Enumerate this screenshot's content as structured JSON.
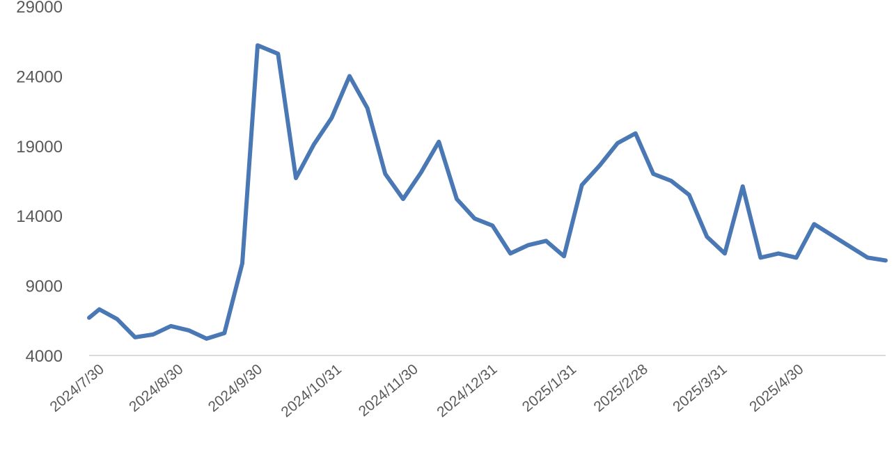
{
  "chart_data": {
    "type": "line",
    "title": "",
    "xlabel": "",
    "ylabel": "",
    "ylim": [
      4000,
      29000
    ],
    "y_ticks": [
      4000,
      9000,
      14000,
      19000,
      24000,
      29000
    ],
    "y_tick_labels": [
      "4000",
      "9000",
      "14000",
      "19000",
      "24000",
      "29000"
    ],
    "x_tick_labels": [
      "2024/7/30",
      "2024/8/30",
      "2024/9/30",
      "2024/10/31",
      "2024/11/30",
      "2024/12/31",
      "2025/1/31",
      "2025/2/28",
      "2025/3/31",
      "2025/4/30"
    ],
    "grid": false,
    "legend": "none",
    "series": [
      {
        "color": "#4a78b5",
        "x": [
          "2024/7/26",
          "2024/7/30",
          "2024/8/6",
          "2024/8/13",
          "2024/8/20",
          "2024/8/27",
          "2024/9/3",
          "2024/9/10",
          "2024/9/17",
          "2024/9/24",
          "2024/9/30",
          "2024/10/8",
          "2024/10/15",
          "2024/10/22",
          "2024/10/29",
          "2024/11/5",
          "2024/11/12",
          "2024/11/19",
          "2024/11/26",
          "2024/12/3",
          "2024/12/10",
          "2024/12/17",
          "2024/12/24",
          "2024/12/31",
          "2025/1/7",
          "2025/1/14",
          "2025/1/21",
          "2025/1/28",
          "2025/2/4",
          "2025/2/11",
          "2025/2/18",
          "2025/2/25",
          "2025/3/4",
          "2025/3/11",
          "2025/3/18",
          "2025/3/25",
          "2025/4/1",
          "2025/4/8",
          "2025/4/15",
          "2025/4/22",
          "2025/4/29",
          "2025/5/6",
          "2025/5/13",
          "2025/5/20",
          "2025/5/27",
          "2025/6/3"
        ],
        "values": [
          6700,
          7300,
          6600,
          5300,
          5500,
          6100,
          5800,
          5200,
          5600,
          10600,
          26200,
          25600,
          16700,
          19100,
          21000,
          24000,
          21700,
          17000,
          15200,
          17100,
          19300,
          15200,
          13800,
          13300,
          11300,
          11900,
          12200,
          11100,
          16200,
          17600,
          19200,
          19900,
          17000,
          16500,
          15500,
          12500,
          11300,
          16100,
          11000,
          11300,
          11000,
          13400,
          12600,
          11800,
          11000,
          10800
        ]
      }
    ]
  }
}
